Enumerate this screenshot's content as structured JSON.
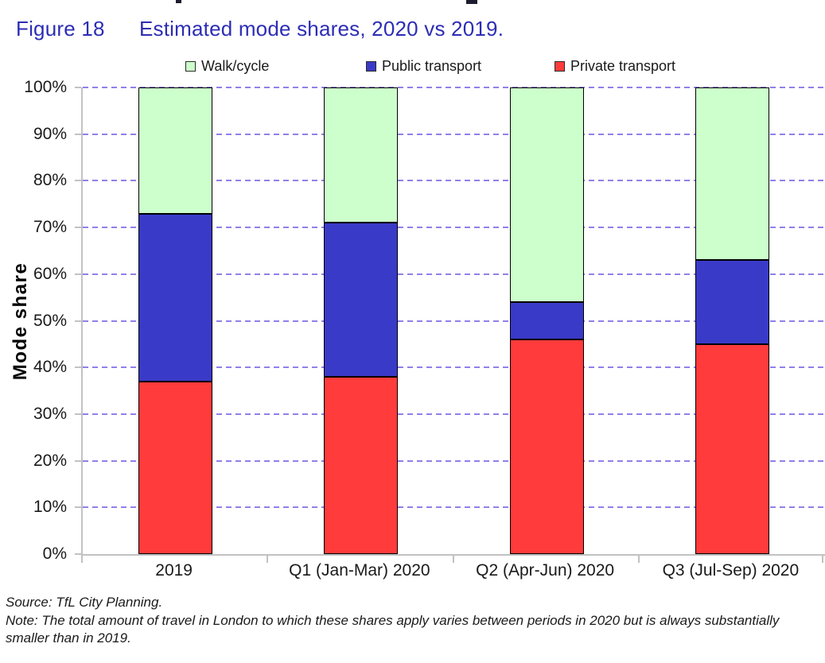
{
  "figure": {
    "label": "Figure 18",
    "title": "Estimated mode shares, 2020 vs 2019.",
    "title_color": "#2D2DB5"
  },
  "chart_data": {
    "type": "bar",
    "stacked": true,
    "categories": [
      "2019",
      "Q1 (Jan-Mar) 2020",
      "Q2 (Apr-Jun) 2020",
      "Q3 (Jul-Sep) 2020"
    ],
    "series": [
      {
        "name": "Private transport",
        "color": "#FF3B3B",
        "values": [
          37,
          38,
          46,
          45
        ]
      },
      {
        "name": "Public transport",
        "color": "#3A3AC8",
        "values": [
          36,
          33,
          8,
          18
        ]
      },
      {
        "name": "Walk/cycle",
        "color": "#CCFFCC",
        "values": [
          27,
          29,
          46,
          37
        ]
      }
    ],
    "legend_order": [
      "Walk/cycle",
      "Public transport",
      "Private transport"
    ],
    "legend_position": "top",
    "ylabel": "Mode share",
    "xlabel": "",
    "ylim": [
      0,
      100
    ],
    "ytick_step": 10,
    "ytick_labels": [
      "0%",
      "10%",
      "20%",
      "30%",
      "40%",
      "50%",
      "60%",
      "70%",
      "80%",
      "90%",
      "100%"
    ],
    "grid": "dashed-horizontal",
    "gridline_color": "#9080E8",
    "axis_color": "#C2C2C2",
    "bar_border_color": "#000000"
  },
  "footer": {
    "source": "Source: TfL City Planning.",
    "note": "Note: The total amount of travel in London to which these shares apply varies between periods in 2020 but is always substantially smaller than in 2019."
  }
}
